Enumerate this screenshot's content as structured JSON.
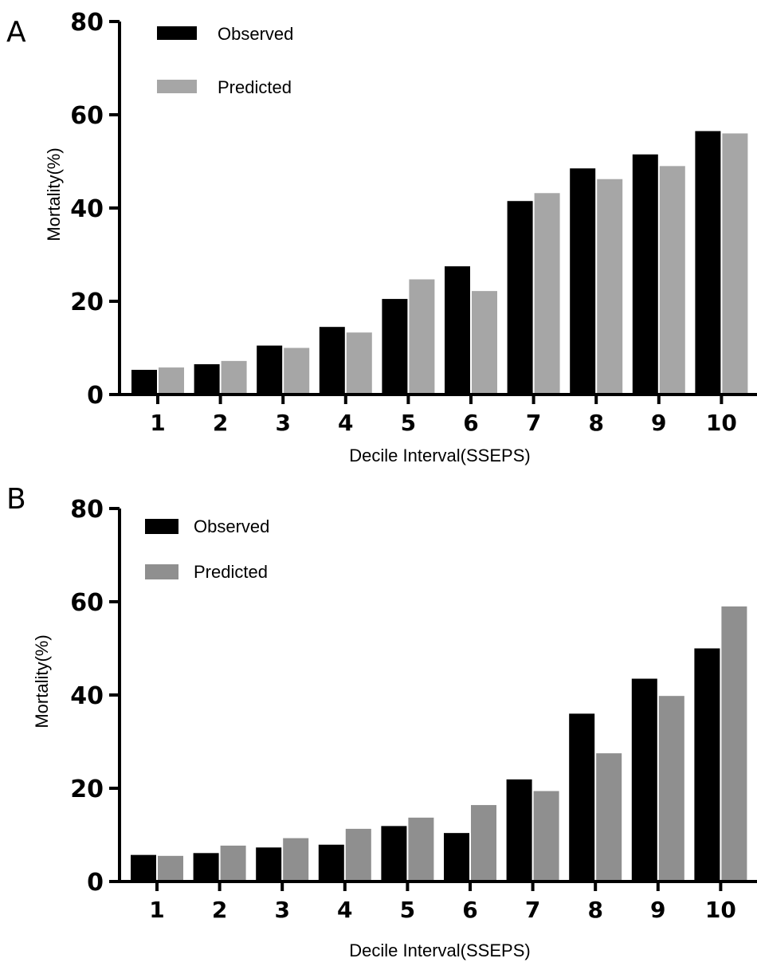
{
  "chart_data": [
    {
      "panel": "A",
      "type": "bar",
      "categories": [
        "1",
        "2",
        "3",
        "4",
        "5",
        "6",
        "7",
        "8",
        "9",
        "10"
      ],
      "series": [
        {
          "name": "Observed",
          "color": "#000000",
          "values": [
            5.3,
            6.5,
            10.5,
            14.5,
            20.5,
            27.5,
            41.5,
            48.5,
            51.5,
            56.5
          ]
        },
        {
          "name": "Predicted",
          "color": "#a6a6a6",
          "values": [
            5.8,
            7.2,
            10.0,
            13.3,
            24.7,
            22.2,
            43.2,
            46.2,
            49.0,
            56.0
          ]
        }
      ],
      "xlabel": "Decile Interval(SSEPS)",
      "ylabel": "Mortality(%)",
      "ylim": [
        0,
        80
      ],
      "yticks": [
        "0",
        "20",
        "40",
        "60",
        "80"
      ],
      "legend": "top-left",
      "grid": false
    },
    {
      "panel": "B",
      "type": "bar",
      "categories": [
        "1",
        "2",
        "3",
        "4",
        "5",
        "6",
        "7",
        "8",
        "9",
        "10"
      ],
      "series": [
        {
          "name": "Observed",
          "color": "#000000",
          "values": [
            5.7,
            6.1,
            7.3,
            7.9,
            11.9,
            10.4,
            21.9,
            36.0,
            43.5,
            50.0
          ]
        },
        {
          "name": "Predicted",
          "color": "#8f8f8f",
          "values": [
            5.5,
            7.7,
            9.3,
            11.3,
            13.7,
            16.4,
            19.4,
            27.5,
            39.8,
            59.0
          ]
        }
      ],
      "xlabel": "Decile Interval(SSEPS)",
      "ylabel": "Mortality(%)",
      "ylim": [
        0,
        80
      ],
      "yticks": [
        "0",
        "20",
        "40",
        "60",
        "80"
      ],
      "legend": "top-left",
      "grid": false
    }
  ]
}
